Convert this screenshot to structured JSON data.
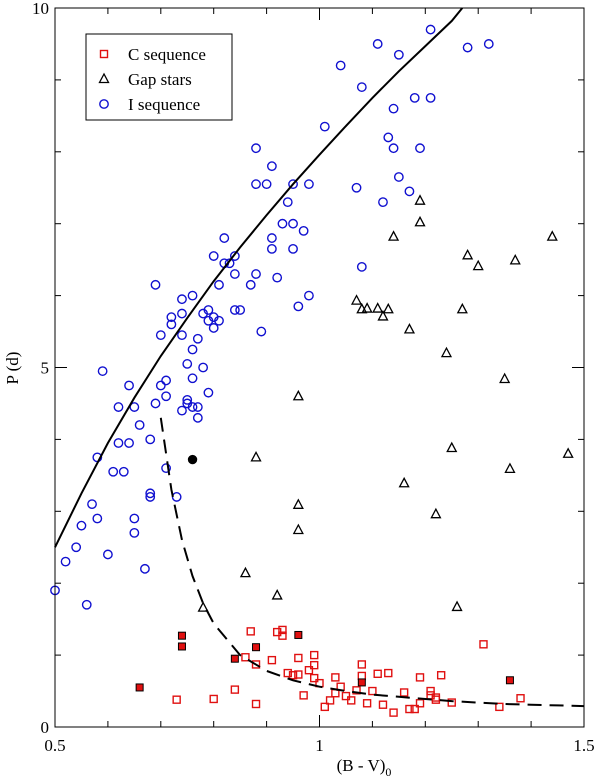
{
  "chart_data": {
    "type": "scatter",
    "title": "",
    "xlabel": "(B - V)",
    "xlabel_subscript": "0",
    "ylabel": "P (d)",
    "xlim": [
      0.5,
      1.5
    ],
    "ylim": [
      0,
      10
    ],
    "x_ticks": [
      {
        "value": 0.5,
        "label": "0.5"
      },
      {
        "value": 1.0,
        "label": "1"
      },
      {
        "value": 1.5,
        "label": "1.5"
      }
    ],
    "y_ticks": [
      {
        "value": 0,
        "label": "0"
      },
      {
        "value": 5,
        "label": "5"
      },
      {
        "value": 10,
        "label": "10"
      }
    ],
    "legend_position": "top-left",
    "colors": {
      "c_seq": "#e01010",
      "gap": "#000000",
      "i_seq": "#1010d0",
      "axis": "#000000"
    },
    "series": [
      {
        "name": "C sequence",
        "marker": "square-open",
        "color": "#e01010",
        "points": [
          [
            0.73,
            0.38
          ],
          [
            0.84,
            0.52
          ],
          [
            0.86,
            0.97
          ],
          [
            0.87,
            1.33
          ],
          [
            0.88,
            0.87
          ],
          [
            0.88,
            0.32
          ],
          [
            0.91,
            0.93
          ],
          [
            0.92,
            1.32
          ],
          [
            0.93,
            1.35
          ],
          [
            0.93,
            1.27
          ],
          [
            0.94,
            0.75
          ],
          [
            0.95,
            0.72
          ],
          [
            0.96,
            0.96
          ],
          [
            0.96,
            0.73
          ],
          [
            0.97,
            0.44
          ],
          [
            0.98,
            0.79
          ],
          [
            0.99,
            0.86
          ],
          [
            0.99,
            1.0
          ],
          [
            1.0,
            0.61
          ],
          [
            0.99,
            0.68
          ],
          [
            1.01,
            0.28
          ],
          [
            1.02,
            0.37
          ],
          [
            1.03,
            0.47
          ],
          [
            1.03,
            0.69
          ],
          [
            1.04,
            0.56
          ],
          [
            1.05,
            0.43
          ],
          [
            1.06,
            0.37
          ],
          [
            1.07,
            0.51
          ],
          [
            1.08,
            0.87
          ],
          [
            1.08,
            0.71
          ],
          [
            1.09,
            0.33
          ],
          [
            1.1,
            0.5
          ],
          [
            1.11,
            0.74
          ],
          [
            1.12,
            0.31
          ],
          [
            1.13,
            0.75
          ],
          [
            1.14,
            0.2
          ],
          [
            1.16,
            0.48
          ],
          [
            1.17,
            0.25
          ],
          [
            1.18,
            0.25
          ],
          [
            1.19,
            0.33
          ],
          [
            1.19,
            0.69
          ],
          [
            1.21,
            0.5
          ],
          [
            1.21,
            0.44
          ],
          [
            1.22,
            0.41
          ],
          [
            1.22,
            0.38
          ],
          [
            1.23,
            0.72
          ],
          [
            1.25,
            0.34
          ],
          [
            1.31,
            1.15
          ],
          [
            1.34,
            0.28
          ],
          [
            1.38,
            0.4
          ],
          [
            0.8,
            0.39
          ]
        ]
      },
      {
        "name": "C sequence (filled)",
        "marker": "square-filled",
        "color": "#e01010",
        "points": [
          [
            0.66,
            0.55
          ],
          [
            0.74,
            1.27
          ],
          [
            0.74,
            1.12
          ],
          [
            0.84,
            0.95
          ],
          [
            0.88,
            1.11
          ],
          [
            0.96,
            1.28
          ],
          [
            1.08,
            0.62
          ],
          [
            1.36,
            0.65
          ]
        ]
      },
      {
        "name": "Gap stars",
        "marker": "triangle-open",
        "color": "#000000",
        "points": [
          [
            0.78,
            1.66
          ],
          [
            0.86,
            2.14
          ],
          [
            0.88,
            3.75
          ],
          [
            0.92,
            1.83
          ],
          [
            0.96,
            4.6
          ],
          [
            0.96,
            3.09
          ],
          [
            0.96,
            2.74
          ],
          [
            1.07,
            5.93
          ],
          [
            1.08,
            5.81
          ],
          [
            1.09,
            5.82
          ],
          [
            1.11,
            5.82
          ],
          [
            1.13,
            5.81
          ],
          [
            1.12,
            5.71
          ],
          [
            1.14,
            6.82
          ],
          [
            1.16,
            3.39
          ],
          [
            1.17,
            5.53
          ],
          [
            1.19,
            7.32
          ],
          [
            1.19,
            7.02
          ],
          [
            1.22,
            2.96
          ],
          [
            1.24,
            5.2
          ],
          [
            1.25,
            3.88
          ],
          [
            1.26,
            1.67
          ],
          [
            1.27,
            5.81
          ],
          [
            1.28,
            6.56
          ],
          [
            1.3,
            6.41
          ],
          [
            1.35,
            4.84
          ],
          [
            1.36,
            3.59
          ],
          [
            1.37,
            6.49
          ],
          [
            1.44,
            6.82
          ],
          [
            1.47,
            3.8
          ]
        ]
      },
      {
        "name": "I sequence",
        "marker": "circle-open",
        "color": "#1010d0",
        "points": [
          [
            0.5,
            1.9
          ],
          [
            0.52,
            2.3
          ],
          [
            0.54,
            2.5
          ],
          [
            0.55,
            2.8
          ],
          [
            0.56,
            1.7
          ],
          [
            0.57,
            3.1
          ],
          [
            0.58,
            2.9
          ],
          [
            0.58,
            3.75
          ],
          [
            0.59,
            4.95
          ],
          [
            0.6,
            2.4
          ],
          [
            0.61,
            3.55
          ],
          [
            0.62,
            3.95
          ],
          [
            0.62,
            4.45
          ],
          [
            0.63,
            3.55
          ],
          [
            0.64,
            4.75
          ],
          [
            0.64,
            3.95
          ],
          [
            0.65,
            4.45
          ],
          [
            0.65,
            2.9
          ],
          [
            0.65,
            2.7
          ],
          [
            0.66,
            4.2
          ],
          [
            0.67,
            2.2
          ],
          [
            0.68,
            3.2
          ],
          [
            0.68,
            3.25
          ],
          [
            0.68,
            4.0
          ],
          [
            0.69,
            6.15
          ],
          [
            0.69,
            4.5
          ],
          [
            0.7,
            5.45
          ],
          [
            0.7,
            4.75
          ],
          [
            0.71,
            4.82
          ],
          [
            0.71,
            4.6
          ],
          [
            0.71,
            3.6
          ],
          [
            0.72,
            5.6
          ],
          [
            0.72,
            5.7
          ],
          [
            0.73,
            3.2
          ],
          [
            0.74,
            5.75
          ],
          [
            0.74,
            5.45
          ],
          [
            0.74,
            4.4
          ],
          [
            0.74,
            5.95
          ],
          [
            0.75,
            4.5
          ],
          [
            0.75,
            4.55
          ],
          [
            0.75,
            5.05
          ],
          [
            0.76,
            5.25
          ],
          [
            0.76,
            6.0
          ],
          [
            0.76,
            4.45
          ],
          [
            0.76,
            4.85
          ],
          [
            0.77,
            5.4
          ],
          [
            0.77,
            4.3
          ],
          [
            0.77,
            4.45
          ],
          [
            0.78,
            5.0
          ],
          [
            0.78,
            5.75
          ],
          [
            0.79,
            5.65
          ],
          [
            0.79,
            4.65
          ],
          [
            0.79,
            5.8
          ],
          [
            0.8,
            5.55
          ],
          [
            0.8,
            5.7
          ],
          [
            0.8,
            6.55
          ],
          [
            0.81,
            6.15
          ],
          [
            0.81,
            5.65
          ],
          [
            0.82,
            6.45
          ],
          [
            0.82,
            6.8
          ],
          [
            0.83,
            6.45
          ],
          [
            0.84,
            6.55
          ],
          [
            0.84,
            6.3
          ],
          [
            0.84,
            5.8
          ],
          [
            0.85,
            5.8
          ],
          [
            0.87,
            6.15
          ],
          [
            0.88,
            6.3
          ],
          [
            0.88,
            7.55
          ],
          [
            0.88,
            8.05
          ],
          [
            0.89,
            5.5
          ],
          [
            0.9,
            7.55
          ],
          [
            0.91,
            7.8
          ],
          [
            0.91,
            6.65
          ],
          [
            0.91,
            6.8
          ],
          [
            0.92,
            6.25
          ],
          [
            0.93,
            7.0
          ],
          [
            0.94,
            7.3
          ],
          [
            0.95,
            7.0
          ],
          [
            0.95,
            6.65
          ],
          [
            0.95,
            7.55
          ],
          [
            0.96,
            5.85
          ],
          [
            0.97,
            6.9
          ],
          [
            0.98,
            6.0
          ],
          [
            0.98,
            7.55
          ],
          [
            1.01,
            8.35
          ],
          [
            1.04,
            9.2
          ],
          [
            1.07,
            7.5
          ],
          [
            1.08,
            6.4
          ],
          [
            1.08,
            8.9
          ],
          [
            1.11,
            9.5
          ],
          [
            1.12,
            7.3
          ],
          [
            1.13,
            8.2
          ],
          [
            1.14,
            8.05
          ],
          [
            1.14,
            8.6
          ],
          [
            1.15,
            9.35
          ],
          [
            1.15,
            7.65
          ],
          [
            1.17,
            7.45
          ],
          [
            1.18,
            8.75
          ],
          [
            1.19,
            8.05
          ],
          [
            1.21,
            8.75
          ],
          [
            1.21,
            9.7
          ],
          [
            1.28,
            9.45
          ],
          [
            1.32,
            9.5
          ]
        ]
      },
      {
        "name": "I sequence (filled)",
        "marker": "circle-filled",
        "color": "#000000",
        "points": [
          [
            0.76,
            3.72
          ]
        ]
      },
      {
        "name": "solid fit curve",
        "marker": "line-solid",
        "color": "#000000",
        "points": [
          [
            0.5,
            2.5
          ],
          [
            0.55,
            3.25
          ],
          [
            0.6,
            3.95
          ],
          [
            0.65,
            4.58
          ],
          [
            0.7,
            5.16
          ],
          [
            0.75,
            5.69
          ],
          [
            0.8,
            6.2
          ],
          [
            0.85,
            6.67
          ],
          [
            0.9,
            7.12
          ],
          [
            0.95,
            7.55
          ],
          [
            1.0,
            7.96
          ],
          [
            1.05,
            8.36
          ],
          [
            1.1,
            8.75
          ],
          [
            1.15,
            9.12
          ],
          [
            1.2,
            9.47
          ],
          [
            1.25,
            9.82
          ],
          [
            1.27,
            10.0
          ]
        ]
      },
      {
        "name": "dashed fit curve",
        "marker": "line-dashed",
        "color": "#000000",
        "points": [
          [
            0.7,
            4.3
          ],
          [
            0.72,
            3.3
          ],
          [
            0.74,
            2.6
          ],
          [
            0.76,
            2.1
          ],
          [
            0.78,
            1.72
          ],
          [
            0.8,
            1.44
          ],
          [
            0.85,
            1.0
          ],
          [
            0.9,
            0.78
          ],
          [
            0.95,
            0.65
          ],
          [
            1.0,
            0.56
          ],
          [
            1.05,
            0.5
          ],
          [
            1.1,
            0.45
          ],
          [
            1.15,
            0.42
          ],
          [
            1.2,
            0.39
          ],
          [
            1.25,
            0.36
          ],
          [
            1.3,
            0.34
          ],
          [
            1.35,
            0.32
          ],
          [
            1.4,
            0.31
          ],
          [
            1.45,
            0.3
          ],
          [
            1.5,
            0.29
          ]
        ]
      }
    ],
    "legend": [
      {
        "label": "C sequence",
        "marker": "square-open",
        "color": "#e01010"
      },
      {
        "label": "Gap stars",
        "marker": "triangle-open",
        "color": "#000000"
      },
      {
        "label": "I sequence",
        "marker": "circle-open",
        "color": "#1010d0"
      }
    ]
  }
}
